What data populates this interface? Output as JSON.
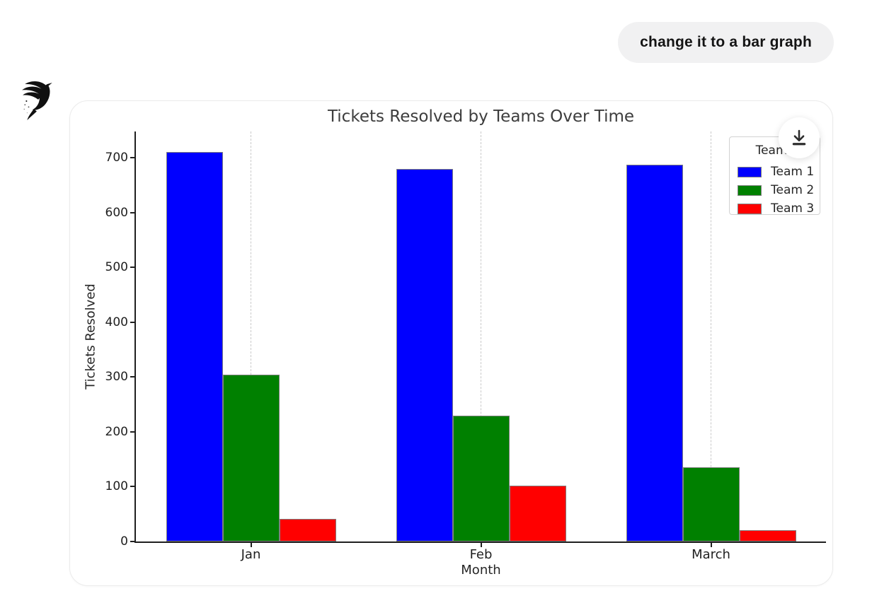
{
  "chat": {
    "user_message": "change it to a bar graph"
  },
  "assistant": {
    "logo_icon": "bird-logo"
  },
  "download_button": {
    "icon": "download-icon"
  },
  "chart_data": {
    "type": "bar",
    "title": "Tickets Resolved by Teams Over Time",
    "xlabel": "Month",
    "ylabel": "Tickets Resolved",
    "categories": [
      "Jan",
      "Feb",
      "March"
    ],
    "series": [
      {
        "name": "Team 1",
        "color": "#0000ff",
        "values": [
          710,
          680,
          688
        ]
      },
      {
        "name": "Team 2",
        "color": "#008000",
        "values": [
          305,
          230,
          136
        ]
      },
      {
        "name": "Team 3",
        "color": "#ff0000",
        "values": [
          41,
          102,
          20
        ]
      }
    ],
    "legend_title": "Teams",
    "legend_position": "upper right",
    "ylim": [
      0,
      748
    ],
    "yticks": [
      0,
      100,
      200,
      300,
      400,
      500,
      600,
      700
    ],
    "grid": "vertical-dashed",
    "bar_edge_color": "#7f7f7f",
    "spine_color": "#1f1f1f"
  }
}
